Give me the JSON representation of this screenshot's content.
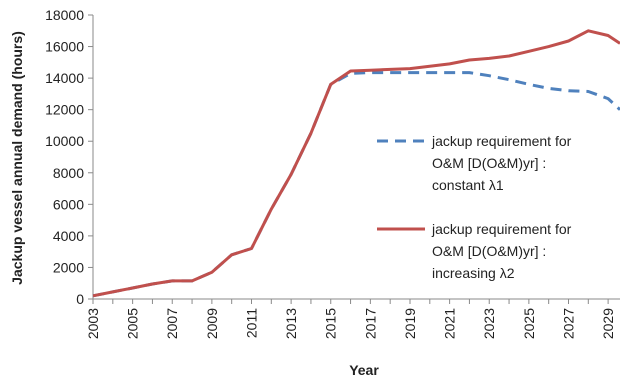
{
  "chart_data": {
    "type": "line",
    "ylabel": "Jackup vessel annual demand (hours)",
    "xlabel": "Year",
    "ylim": [
      0,
      18000
    ],
    "y_ticks": [
      0,
      2000,
      4000,
      6000,
      8000,
      10000,
      12000,
      14000,
      16000,
      18000
    ],
    "xlim": [
      2003,
      2029.6
    ],
    "x_ticks": [
      "2003",
      "2005",
      "2007",
      "2009",
      "2011",
      "2013",
      "2015",
      "2017",
      "2019",
      "2021",
      "2023",
      "2025",
      "2027",
      "2029"
    ],
    "grid": false,
    "legend_position": "right",
    "series": [
      {
        "name": "jackup requirement for O&M [D(O&M)yr] : constant λ1",
        "legend_lines": [
          "jackup requirement for",
          "O&M [D(O&M)yr] :",
          "constant λ1"
        ],
        "color": "#4f81bd",
        "style": "dashed",
        "x": [
          2003,
          2004,
          2005,
          2006,
          2007,
          2008,
          2009,
          2010,
          2011,
          2012,
          2013,
          2014,
          2015,
          2016,
          2017,
          2018,
          2019,
          2020,
          2021,
          2022,
          2023,
          2024,
          2025,
          2026,
          2027,
          2028,
          2029,
          2029.6
        ],
        "y": [
          200,
          450,
          700,
          950,
          1150,
          1150,
          1700,
          2800,
          3200,
          5700,
          7900,
          10500,
          13600,
          14300,
          14350,
          14350,
          14350,
          14350,
          14350,
          14350,
          14150,
          13900,
          13600,
          13350,
          13200,
          13150,
          12700,
          12000
        ]
      },
      {
        "name": "jackup requirement for O&M [D(O&M)yr] : increasing λ2",
        "legend_lines": [
          "jackup requirement for",
          "O&M [D(O&M)yr] :",
          "increasing λ2"
        ],
        "color": "#c0504d",
        "style": "solid",
        "x": [
          2003,
          2004,
          2005,
          2006,
          2007,
          2008,
          2009,
          2010,
          2011,
          2012,
          2013,
          2014,
          2015,
          2016,
          2017,
          2018,
          2019,
          2020,
          2021,
          2022,
          2023,
          2024,
          2025,
          2026,
          2027,
          2028,
          2029,
          2029.6
        ],
        "y": [
          200,
          450,
          700,
          950,
          1150,
          1150,
          1700,
          2800,
          3200,
          5700,
          7900,
          10500,
          13600,
          14450,
          14500,
          14550,
          14600,
          14750,
          14900,
          15150,
          15250,
          15400,
          15700,
          16000,
          16350,
          17000,
          16700,
          16200
        ]
      }
    ]
  }
}
